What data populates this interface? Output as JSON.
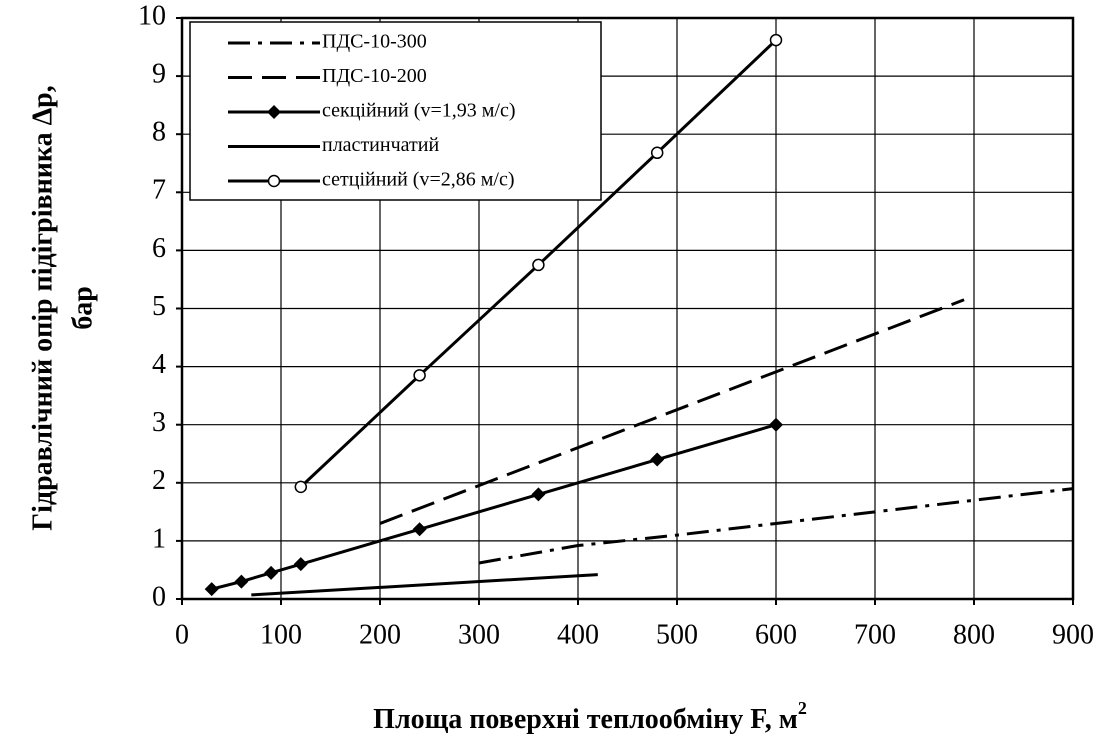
{
  "chart_data": {
    "type": "line",
    "y_label": [
      "Гідравлічний опір підігрівника Δр,",
      "бар"
    ],
    "x_label": "Площа поверхні теплообміну F, м",
    "x_label_sup": "2",
    "xlim": [
      0,
      900
    ],
    "xticks": [
      0,
      100,
      200,
      300,
      400,
      500,
      600,
      700,
      800,
      900
    ],
    "ylim": [
      0,
      10
    ],
    "yticks": [
      0,
      1,
      2,
      3,
      4,
      5,
      6,
      7,
      8,
      9,
      10
    ],
    "grid": true,
    "legend": "upper left",
    "series": [
      {
        "name": "ПДС-10-300",
        "color": "#000000",
        "dash": "dashdot",
        "marker": null,
        "x": [
          300,
          400,
          500,
          600,
          700,
          800,
          900
        ],
        "values": [
          0.62,
          0.92,
          1.1,
          1.3,
          1.5,
          1.7,
          1.9
        ]
      },
      {
        "name": "ПДС-10-200",
        "color": "#000000",
        "dash": "dash",
        "marker": null,
        "x": [
          200,
          790
        ],
        "values": [
          1.3,
          5.15
        ]
      },
      {
        "name": "секційний (v=1,93 м/с)",
        "color": "#000000",
        "dash": "solid",
        "marker": "diamond",
        "x": [
          30,
          60,
          90,
          120,
          240,
          360,
          480,
          600
        ],
        "values": [
          0.17,
          0.3,
          0.45,
          0.6,
          1.2,
          1.8,
          2.4,
          3.0
        ]
      },
      {
        "name": "пластинчатий",
        "color": "#000000",
        "dash": "solid",
        "marker": null,
        "x": [
          70,
          420
        ],
        "values": [
          0.07,
          0.42
        ]
      },
      {
        "name": "сетційний (v=2,86 м/с)",
        "color": "#000000",
        "dash": "solid",
        "marker": "circle",
        "x": [
          120,
          240,
          360,
          480,
          600
        ],
        "values": [
          1.93,
          3.85,
          5.75,
          7.68,
          9.62
        ]
      }
    ]
  }
}
